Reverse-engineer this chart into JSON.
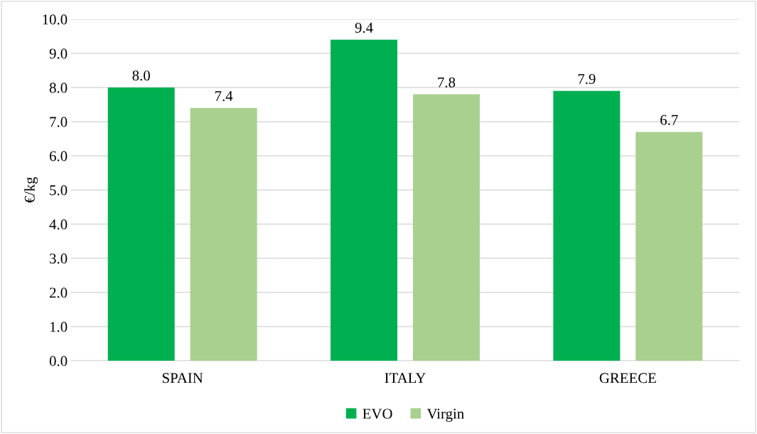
{
  "chart_data": {
    "type": "bar",
    "ylabel": "€/kg",
    "categories": [
      "SPAIN",
      "ITALY",
      "GREECE"
    ],
    "series": [
      {
        "name": "EVO",
        "color": "#00b050",
        "values": [
          8.0,
          9.4,
          7.9
        ],
        "value_labels": [
          "8.0",
          "9.4",
          "7.9"
        ]
      },
      {
        "name": "Virgin",
        "color": "#a9d08e",
        "values": [
          7.4,
          7.8,
          6.7
        ],
        "value_labels": [
          "7.4",
          "7.8",
          "6.7"
        ]
      }
    ],
    "ylim": [
      0,
      10
    ],
    "yticks": [
      {
        "value": 0,
        "label": "0.0"
      },
      {
        "value": 1,
        "label": "1.0"
      },
      {
        "value": 2,
        "label": "2.0"
      },
      {
        "value": 3,
        "label": "3.0"
      },
      {
        "value": 4,
        "label": "4.0"
      },
      {
        "value": 5,
        "label": "5.0"
      },
      {
        "value": 6,
        "label": "6.0"
      },
      {
        "value": 7,
        "label": "7.0"
      },
      {
        "value": 8,
        "label": "8.0"
      },
      {
        "value": 9,
        "label": "9.0"
      },
      {
        "value": 10,
        "label": "10.0"
      }
    ],
    "grid": "y",
    "legend": "bottom"
  }
}
